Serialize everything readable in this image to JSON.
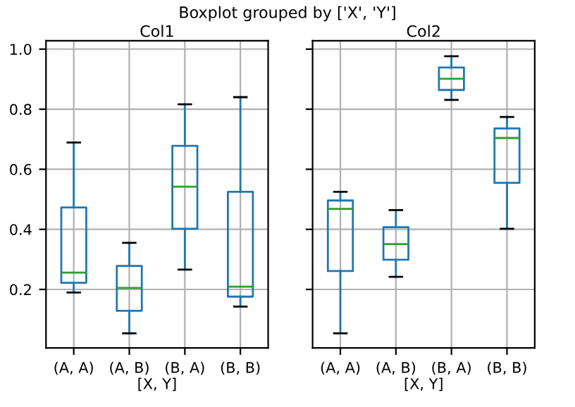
{
  "chart_data": [
    {
      "type": "box",
      "title": "Col1",
      "xlabel": "[X, Y]",
      "categories": [
        "(A, A)",
        "(A, B)",
        "(B, A)",
        "(B, B)"
      ],
      "series": [
        {
          "color": "#1f77b4",
          "boxes": [
            {
              "low": 0.19,
              "q1": 0.222,
              "median": 0.256,
              "q3": 0.473,
              "high": 0.689
            },
            {
              "low": 0.054,
              "q1": 0.129,
              "median": 0.205,
              "q3": 0.278,
              "high": 0.355
            },
            {
              "low": 0.266,
              "q1": 0.402,
              "median": 0.542,
              "q3": 0.678,
              "high": 0.816
            },
            {
              "low": 0.143,
              "q1": 0.176,
              "median": 0.209,
              "q3": 0.525,
              "high": 0.84
            }
          ]
        }
      ],
      "ylim": [
        0.005,
        1.028
      ],
      "yticks": [
        0.2,
        0.4,
        0.6,
        0.8,
        {
          "value": 1,
          "label": "1.0"
        }
      ],
      "grid": true
    },
    {
      "type": "box",
      "title": "Col2",
      "xlabel": "[X, Y]",
      "categories": [
        "(A, A)",
        "(A, B)",
        "(B, A)",
        "(B, B)"
      ],
      "series": [
        {
          "color": "#1f77b4",
          "boxes": [
            {
              "low": 0.054,
              "q1": 0.261,
              "median": 0.468,
              "q3": 0.496,
              "high": 0.525
            },
            {
              "low": 0.242,
              "q1": 0.299,
              "median": 0.351,
              "q3": 0.407,
              "high": 0.464
            },
            {
              "low": 0.831,
              "q1": 0.864,
              "median": 0.901,
              "q3": 0.939,
              "high": 0.976
            },
            {
              "low": 0.402,
              "q1": 0.555,
              "median": 0.704,
              "q3": 0.736,
              "high": 0.774
            }
          ]
        }
      ],
      "ylim": [
        0.005,
        1.028
      ],
      "yticks": [
        0.2,
        0.4,
        0.6,
        0.8,
        1
      ],
      "grid": true,
      "tick_labels": "x",
      "annotations": [
        "Boxplot grouped by ['X', 'Y']"
      ]
    }
  ]
}
